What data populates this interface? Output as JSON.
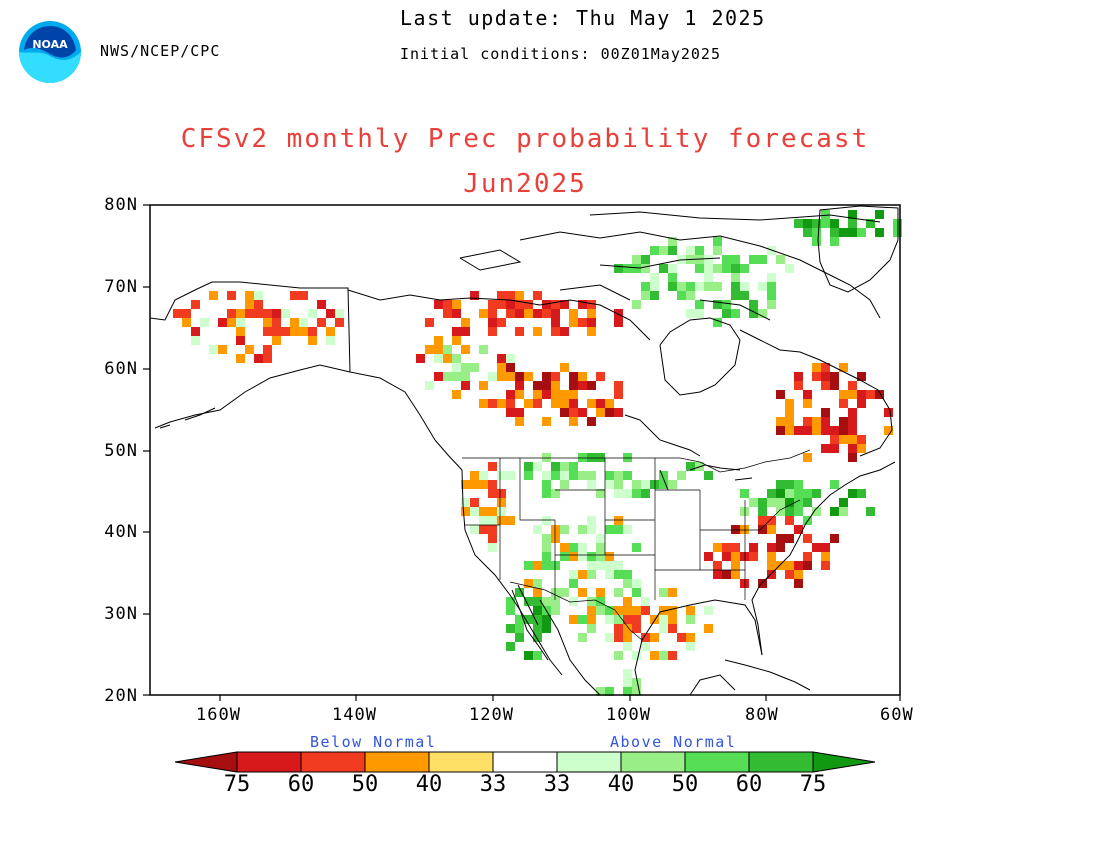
{
  "header": {
    "agency": "NWS/NCEP/CPC",
    "last_update": "Last update: Thu May 1 2025",
    "initial_conditions": "Initial conditions: 00Z01May2025",
    "logo_text": "NOAA"
  },
  "title": "CFSv2 monthly Prec probability forecast",
  "subtitle": "Jun2025",
  "axes": {
    "lat_labels": [
      "80N",
      "70N",
      "60N",
      "50N",
      "40N",
      "30N",
      "20N"
    ],
    "lon_labels": [
      "160W",
      "140W",
      "120W",
      "100W",
      "80W",
      "60W"
    ]
  },
  "colorbar": {
    "below_label": "Below Normal",
    "above_label": "Above Normal",
    "ticks": [
      "75",
      "60",
      "50",
      "40",
      "33",
      "33",
      "40",
      "50",
      "60",
      "75"
    ],
    "colors": {
      "below_75": "#a50f0f",
      "below_60": "#d7191c",
      "below_50": "#f03b20",
      "below_40": "#ff9900",
      "below_33": "#ffe066",
      "normal": "#ffffff",
      "above_33": "#ccffcc",
      "above_40": "#99ee88",
      "above_50": "#55dd55",
      "above_60": "#33bb33",
      "above_75": "#119911"
    }
  }
}
